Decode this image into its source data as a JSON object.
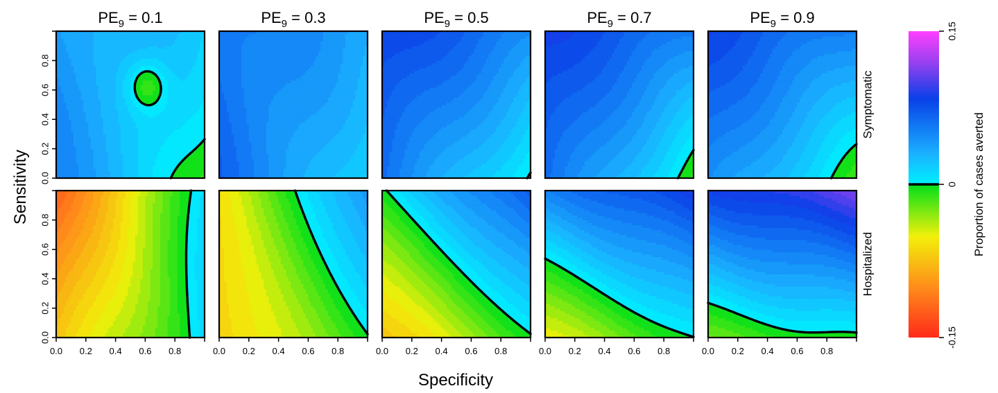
{
  "chart_data": {
    "type": "heatmap",
    "subtype": "filled-contour-grid",
    "xlabel": "Specificity",
    "ylabel": "Sensitivity",
    "xlim": [
      0,
      1
    ],
    "ylim": [
      0,
      1
    ],
    "x_ticks": [
      0.0,
      0.2,
      0.4,
      0.6,
      0.8
    ],
    "x_tick_labels": [
      "0.0",
      "0.2",
      "0.4",
      "0.6",
      "0.8"
    ],
    "y_ticks": [
      0.0,
      0.2,
      0.4,
      0.6,
      0.8
    ],
    "y_tick_labels": [
      "0.0",
      "0.2",
      "0.4",
      "0.6",
      "0.8"
    ],
    "columns": [
      {
        "prefix": "PE",
        "subscript": "9",
        "value_text": " =  0.1",
        "pe": 0.1
      },
      {
        "prefix": "PE",
        "subscript": "9",
        "value_text": " =  0.3",
        "pe": 0.3
      },
      {
        "prefix": "PE",
        "subscript": "9",
        "value_text": " =  0.5",
        "pe": 0.5
      },
      {
        "prefix": "PE",
        "subscript": "9",
        "value_text": " =  0.7",
        "pe": 0.7
      },
      {
        "prefix": "PE",
        "subscript": "9",
        "value_text": " =  0.9",
        "pe": 0.9
      }
    ],
    "rows": [
      "Symptomatic",
      "Hospitalized"
    ],
    "colorbar": {
      "label": "Proportion of cases averted",
      "min": -0.15,
      "max": 0.15,
      "tick_values": [
        -0.15,
        0,
        0.15
      ],
      "tick_labels": [
        "-0.15",
        "0",
        "0.15"
      ],
      "zero_contour": "thick black line"
    },
    "approx_corner_values": [
      {
        "row": "Symptomatic",
        "pe": 0.1,
        "sens0_spec0": 0.05,
        "sens1_spec0": 0.04,
        "sens0_spec1": -0.01,
        "sens1_spec1": 0.015
      },
      {
        "row": "Symptomatic",
        "pe": 0.3,
        "sens0_spec0": 0.065,
        "sens1_spec0": 0.06,
        "sens0_spec1": 0.01,
        "sens1_spec1": 0.035
      },
      {
        "row": "Symptomatic",
        "pe": 0.5,
        "sens0_spec0": 0.06,
        "sens1_spec0": 0.085,
        "sens0_spec1": -0.005,
        "sens1_spec1": 0.05
      },
      {
        "row": "Symptomatic",
        "pe": 0.7,
        "sens0_spec0": 0.065,
        "sens1_spec0": 0.085,
        "sens0_spec1": -0.01,
        "sens1_spec1": 0.055
      },
      {
        "row": "Symptomatic",
        "pe": 0.9,
        "sens0_spec0": 0.05,
        "sens1_spec0": 0.08,
        "sens0_spec1": -0.01,
        "sens1_spec1": 0.05
      },
      {
        "row": "Hospitalized",
        "pe": 0.1,
        "sens0_spec0": -0.075,
        "sens1_spec0": -0.12,
        "sens0_spec1": 0.01,
        "sens1_spec1": 0.01
      },
      {
        "row": "Hospitalized",
        "pe": 0.3,
        "sens0_spec0": -0.07,
        "sens1_spec0": -0.055,
        "sens0_spec1": -0.005,
        "sens1_spec1": 0.045
      },
      {
        "row": "Hospitalized",
        "pe": 0.5,
        "sens0_spec0": -0.075,
        "sens1_spec0": 0.0,
        "sens0_spec1": -0.005,
        "sens1_spec1": 0.075
      },
      {
        "row": "Hospitalized",
        "pe": 0.7,
        "sens0_spec0": -0.05,
        "sens1_spec0": 0.05,
        "sens0_spec1": 0.0,
        "sens1_spec1": 0.09
      },
      {
        "row": "Hospitalized",
        "pe": 0.9,
        "sens0_spec0": -0.02,
        "sens1_spec0": 0.08,
        "sens0_spec1": 0.0,
        "sens1_spec1": 0.11
      }
    ]
  }
}
